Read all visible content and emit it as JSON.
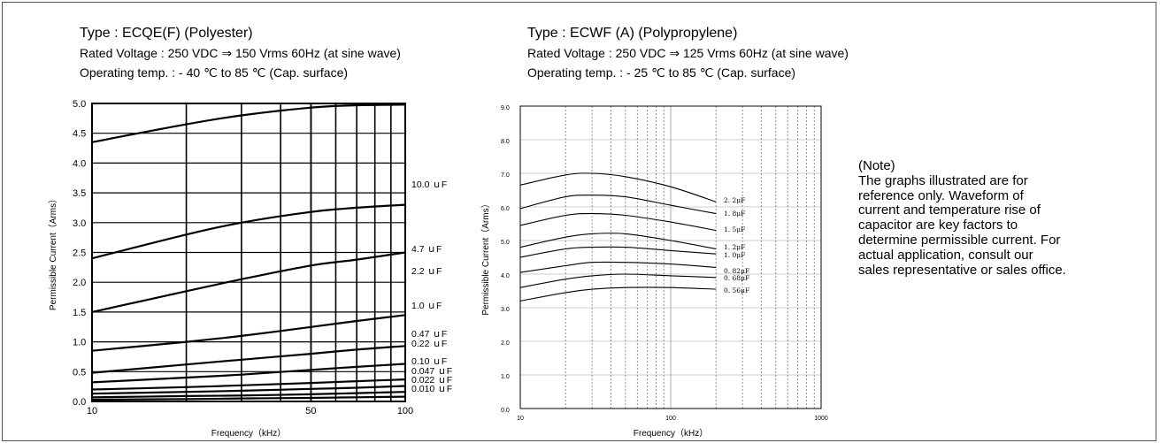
{
  "left_chart_header": {
    "type": "Type : ECQE(F) (Polyester)",
    "rated_voltage": "Rated Voltage : 250 VDC ⇒ 150 Vrms 60Hz (at sine wave)",
    "operating_temp": "Operating temp. : - 40 ℃ to 85 ℃ (Cap. surface)"
  },
  "right_chart_header": {
    "type": "Type : ECWF (A) (Polypropylene)",
    "rated_voltage": "Rated Voltage : 250 VDC ⇒ 125 Vrms 60Hz (at sine wave)",
    "operating_temp": "Operating temp. : - 25 ℃ to 85 ℃ (Cap. surface)"
  },
  "note": {
    "title": "(Note)",
    "body": "The graphs illustrated are for\nreference only. Waveform of\ncurrent and temperature rise of\ncapacitor are key factors to\ndetermine permissible current. For\nactual application, consult our\nsales representative or sales office."
  },
  "colors": {
    "line": "#000000",
    "grid": "#000000",
    "dashed_grid": "#777777",
    "frame": "#555555"
  },
  "chart_data": [
    {
      "type": "line",
      "xlabel": "Frequency（kHz）",
      "ylabel": "Permissible Current（Arms）",
      "x_scale": "log",
      "xlim": [
        10,
        100
      ],
      "ylim": [
        0,
        5.0
      ],
      "x_ticks": [
        10,
        50,
        100
      ],
      "x_tick_labels": [
        "10",
        "50",
        "100"
      ],
      "y_ticks": [
        0,
        0.5,
        1.0,
        1.5,
        2.0,
        2.5,
        3.0,
        3.5,
        4.0,
        4.5,
        5.0
      ],
      "y_tick_labels": [
        "0.0",
        "0.5",
        "1.0",
        "1.5",
        "2.0",
        "2.5",
        "3.0",
        "3.5",
        "4.0",
        "4.5",
        "5.0"
      ],
      "x": [
        10,
        20,
        30,
        50,
        70,
        100
      ],
      "series": [
        {
          "name": "10.0 μF",
          "label": "10.0 ｕF",
          "values": [
            4.35,
            4.65,
            4.8,
            4.93,
            4.97,
            4.98
          ]
        },
        {
          "name": "4.7 μF",
          "label": "4.7 ｕF",
          "values": [
            2.4,
            2.8,
            3.0,
            3.18,
            3.25,
            3.3
          ]
        },
        {
          "name": "2.2 μF",
          "label": "2.2 ｕF",
          "values": [
            1.5,
            1.85,
            2.05,
            2.28,
            2.38,
            2.5
          ]
        },
        {
          "name": "1.0 μF",
          "label": "1.0 ｕF",
          "values": [
            0.85,
            1.0,
            1.1,
            1.25,
            1.35,
            1.45
          ]
        },
        {
          "name": "0.47 μF",
          "label": "0.47 ｕF",
          "values": [
            0.48,
            0.62,
            0.7,
            0.8,
            0.87,
            0.93
          ]
        },
        {
          "name": "0.22 μF",
          "label": "0.22 ｕF",
          "values": [
            0.32,
            0.4,
            0.45,
            0.53,
            0.58,
            0.63
          ]
        },
        {
          "name": "0.10 μF",
          "label": "0.10 ｕF",
          "values": [
            0.2,
            0.24,
            0.27,
            0.31,
            0.34,
            0.37
          ]
        },
        {
          "name": "0.047 μF",
          "label": "0.047 ｕF",
          "values": [
            0.13,
            0.16,
            0.18,
            0.21,
            0.23,
            0.26
          ]
        },
        {
          "name": "0.022 μF",
          "label": "0.022 ｕF",
          "values": [
            0.07,
            0.09,
            0.1,
            0.12,
            0.14,
            0.16
          ]
        },
        {
          "name": "0.010 μF",
          "label": "0.010 ｕF",
          "values": [
            0.03,
            0.04,
            0.05,
            0.06,
            0.07,
            0.08
          ]
        }
      ]
    },
    {
      "type": "line",
      "xlabel": "Frequency（kHz）",
      "ylabel": "Permissible Current（Arms）",
      "x_scale": "log",
      "xlim": [
        10,
        1000
      ],
      "ylim": [
        0,
        9.0
      ],
      "x_ticks": [
        10,
        100,
        1000
      ],
      "x_tick_labels": [
        "10",
        "100",
        "1000"
      ],
      "y_ticks": [
        0,
        1,
        2,
        3,
        4,
        5,
        6,
        7,
        8,
        9
      ],
      "y_tick_labels": [
        "0.0",
        "1.0",
        "2.0",
        "3.0",
        "4.0",
        "5.0",
        "6.0",
        "7.0",
        "8.0",
        "9.0"
      ],
      "x": [
        10,
        20,
        30,
        50,
        100,
        200
      ],
      "series": [
        {
          "name": "2.2 μF",
          "label": "2. 2μF",
          "values": [
            6.65,
            6.95,
            7.0,
            6.9,
            6.6,
            6.15
          ]
        },
        {
          "name": "1.8 μF",
          "label": "1. 8μF",
          "values": [
            5.95,
            6.3,
            6.35,
            6.3,
            6.05,
            5.8
          ]
        },
        {
          "name": "1.5 μF",
          "label": "1. 5μF",
          "values": [
            5.45,
            5.75,
            5.8,
            5.75,
            5.55,
            5.3
          ]
        },
        {
          "name": "1.2 μF",
          "label": "1. 2μF",
          "values": [
            4.8,
            5.1,
            5.2,
            5.2,
            5.0,
            4.75
          ]
        },
        {
          "name": "1.0 μF",
          "label": "1. 0μF",
          "values": [
            4.5,
            4.75,
            4.8,
            4.8,
            4.7,
            4.6
          ]
        },
        {
          "name": "0.82 μF",
          "label": "0. 82μF",
          "values": [
            4.05,
            4.25,
            4.35,
            4.35,
            4.3,
            4.2
          ]
        },
        {
          "name": "0.68 μF",
          "label": "0. 68μF",
          "values": [
            3.6,
            3.85,
            3.95,
            4.0,
            3.95,
            3.9
          ]
        },
        {
          "name": "0.56 μF",
          "label": "0. 56μF",
          "values": [
            3.2,
            3.45,
            3.55,
            3.6,
            3.6,
            3.55
          ]
        }
      ]
    }
  ]
}
